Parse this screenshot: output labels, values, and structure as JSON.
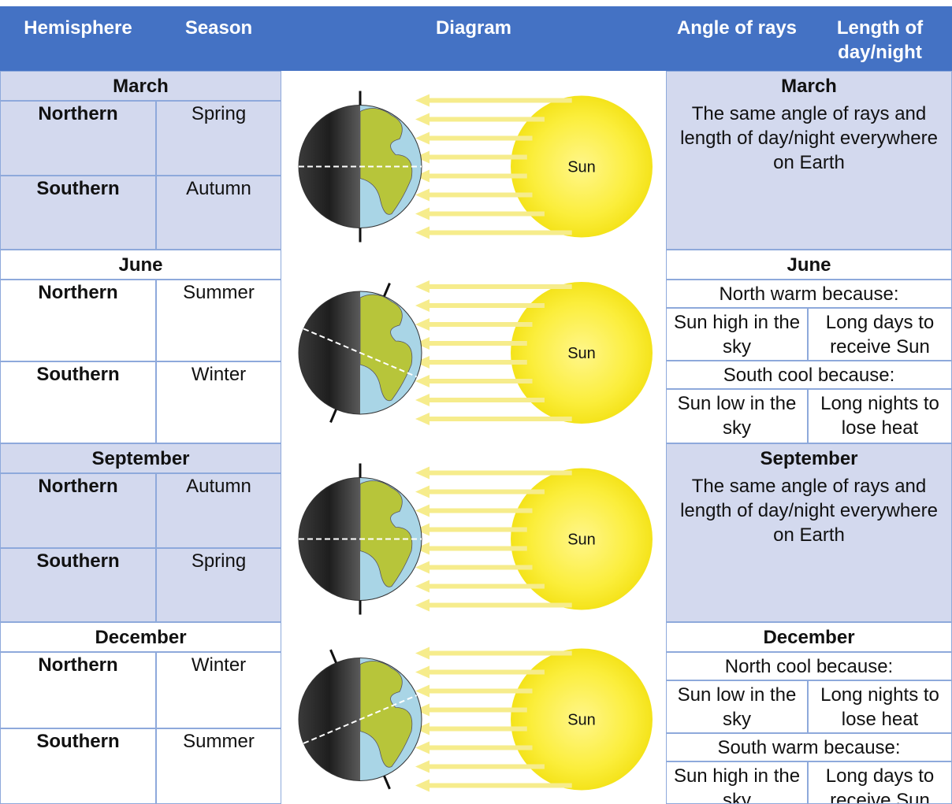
{
  "header": [
    "Hemisphere",
    "Season",
    "Diagram",
    "Angle of rays",
    "Length of day/night"
  ],
  "sections": [
    {
      "month": "March",
      "rows": [
        [
          "Northern",
          "Spring"
        ],
        [
          "Southern",
          "Autumn"
        ]
      ],
      "diagram_label": "Sun",
      "explanation": {
        "text": "The same angle of rays and length of day/night everywhere on Earth"
      }
    },
    {
      "month": "June",
      "rows": [
        [
          "Northern",
          "Summer"
        ],
        [
          "Southern",
          "Winter"
        ]
      ],
      "diagram_label": "Sun",
      "explanation": {
        "north_heading": "North warm because:",
        "north": [
          "Sun high in the sky",
          "Long days to receive Sun"
        ],
        "south_heading": "South cool because:",
        "south": [
          "Sun low in the sky",
          "Long nights to lose heat"
        ]
      }
    },
    {
      "month": "September",
      "rows": [
        [
          "Northern",
          "Autumn"
        ],
        [
          "Southern",
          "Spring"
        ]
      ],
      "diagram_label": "Sun",
      "explanation": {
        "text": "The same angle of rays and length of day/night everywhere on Earth"
      }
    },
    {
      "month": "December",
      "rows": [
        [
          "Northern",
          "Winter"
        ],
        [
          "Southern",
          "Summer"
        ]
      ],
      "diagram_label": "Sun",
      "explanation": {
        "north_heading": "North cool because:",
        "north": [
          "Sun low in the sky",
          "Long nights to lose heat"
        ],
        "south_heading": "South warm because:",
        "south": [
          "Sun high in the sky",
          "Long days to receive Sun"
        ]
      }
    }
  ]
}
